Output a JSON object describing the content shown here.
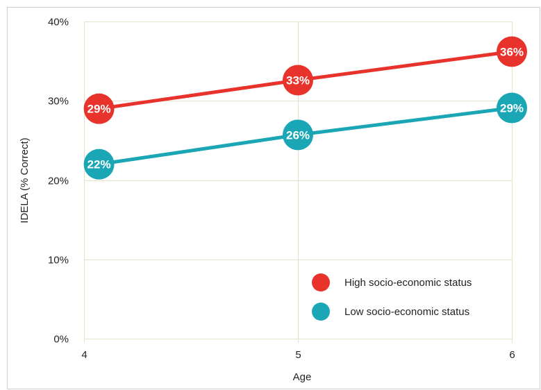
{
  "chart_data": {
    "type": "line",
    "x": [
      4,
      5,
      6
    ],
    "xlim": [
      4,
      6
    ],
    "ylim": [
      0,
      40
    ],
    "xlabel": "Age",
    "ylabel": "IDELA (% Correct)",
    "x_tick_labels": [
      "4",
      "5",
      "6"
    ],
    "y_ticks": [
      0,
      10,
      20,
      30,
      40
    ],
    "y_tick_labels": [
      "0%",
      "10%",
      "20%",
      "30%",
      "40%"
    ],
    "grid": true,
    "legend_position": "bottom-right",
    "series": [
      {
        "name": "High socio-economic status",
        "color": "#e8332d",
        "points": [
          {
            "x": 4.07,
            "y": 29,
            "label": "29%"
          },
          {
            "x": 5,
            "y": 32.6,
            "label": "33%"
          },
          {
            "x": 6,
            "y": 36.2,
            "label": "36%"
          }
        ]
      },
      {
        "name": "Low socio-economic status",
        "color": "#1ba6b5",
        "points": [
          {
            "x": 4.07,
            "y": 22,
            "label": "22%"
          },
          {
            "x": 5,
            "y": 25.7,
            "label": "26%"
          },
          {
            "x": 6,
            "y": 29.1,
            "label": "29%"
          }
        ]
      }
    ]
  },
  "colors": {
    "grid": "#e6e3c8",
    "frame": "#cfcfcf"
  }
}
